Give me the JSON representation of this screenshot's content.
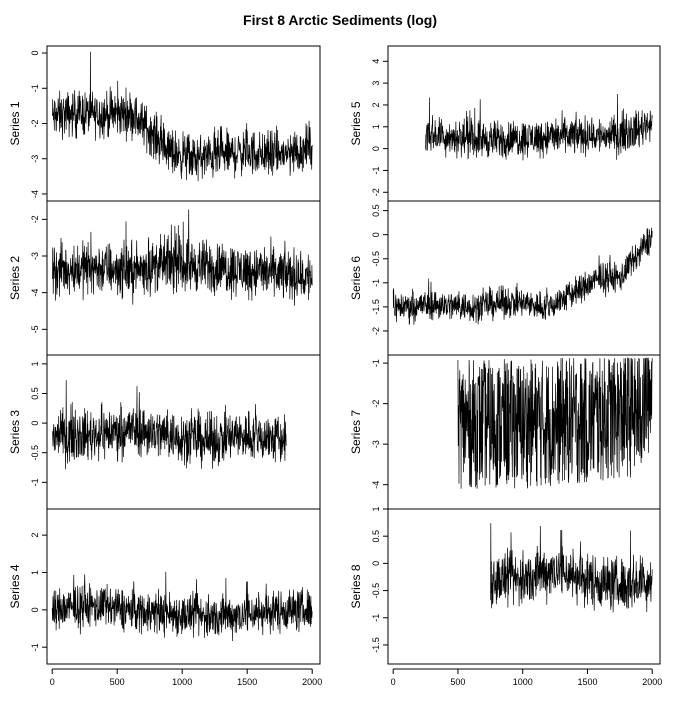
{
  "title": "First 8 Arctic Sediments (log)",
  "chart_data": [
    {
      "type": "line",
      "ylabel": "Series 1",
      "column": "left",
      "row": 0,
      "x": [
        0,
        200,
        400,
        600,
        750,
        900,
        1100,
        1300,
        1500,
        1700,
        1900,
        2000
      ],
      "yticks": [
        0,
        -1,
        -2,
        -3,
        -4
      ],
      "ylim": [
        -4.2,
        0.2
      ],
      "xrange": [
        0,
        2000
      ],
      "level": [
        -1.8,
        -1.7,
        -1.75,
        -1.7,
        -2.2,
        -2.8,
        -3.0,
        -2.9,
        -2.8,
        -2.9,
        -2.8,
        -2.6
      ],
      "noise": 0.45
    },
    {
      "type": "line",
      "ylabel": "Series 2",
      "column": "left",
      "row": 1,
      "x": [
        0,
        300,
        600,
        900,
        1200,
        1500,
        1800,
        2000
      ],
      "yticks": [
        -2,
        -3,
        -4,
        -5
      ],
      "ylim": [
        -5.7,
        -1.5
      ],
      "xrange": [
        0,
        2000
      ],
      "level": [
        -3.4,
        -3.3,
        -3.4,
        -3.2,
        -3.3,
        -3.4,
        -3.5,
        -3.6
      ],
      "noise": 0.5
    },
    {
      "type": "line",
      "ylabel": "Series 3",
      "column": "left",
      "row": 2,
      "x": [
        0,
        300,
        600,
        900,
        1200,
        1500,
        1800
      ],
      "yticks": [
        1.0,
        0.5,
        0.0,
        -0.5,
        -1.0
      ],
      "ylim": [
        -1.45,
        1.15
      ],
      "xrange": [
        0,
        1800
      ],
      "level": [
        -0.2,
        -0.2,
        -0.1,
        -0.2,
        -0.3,
        -0.2,
        -0.3
      ],
      "noise": 0.3
    },
    {
      "type": "line",
      "ylabel": "Series 4",
      "column": "left",
      "row": 3,
      "x": [
        0,
        300,
        600,
        900,
        1200,
        1500,
        1800,
        2000
      ],
      "yticks": [
        2,
        1,
        0,
        -1
      ],
      "ylim": [
        -1.45,
        2.7
      ],
      "xrange": [
        0,
        2000
      ],
      "level": [
        0.0,
        0.1,
        0.0,
        -0.1,
        -0.2,
        -0.1,
        0.0,
        0.0
      ],
      "noise": 0.4
    },
    {
      "type": "line",
      "ylabel": "Series 5",
      "column": "right",
      "row": 0,
      "x": [
        250,
        500,
        800,
        1100,
        1400,
        1700,
        1900,
        2000
      ],
      "yticks": [
        4,
        3,
        2,
        1,
        0,
        -1,
        -2
      ],
      "ylim": [
        -2.4,
        4.7
      ],
      "xrange": [
        250,
        2000
      ],
      "level": [
        0.7,
        0.5,
        0.4,
        0.5,
        0.6,
        0.6,
        0.9,
        1.3
      ],
      "noise": 0.6
    },
    {
      "type": "line",
      "ylabel": "Series 6",
      "column": "right",
      "row": 1,
      "x": [
        0,
        300,
        600,
        900,
        1200,
        1400,
        1600,
        1750,
        1900,
        2000
      ],
      "yticks": [
        0.5,
        0.0,
        -0.5,
        -1.0,
        -1.5,
        -2.0
      ],
      "ylim": [
        -2.5,
        0.7
      ],
      "xrange": [
        0,
        2000
      ],
      "level": [
        -1.5,
        -1.45,
        -1.5,
        -1.4,
        -1.5,
        -1.2,
        -0.9,
        -0.9,
        -0.4,
        0.0
      ],
      "noise": 0.22
    },
    {
      "type": "line",
      "ylabel": "Series 7",
      "column": "right",
      "row": 2,
      "x": [
        500,
        1000,
        1500,
        1900,
        2000
      ],
      "yticks": [
        -1,
        -2,
        -3,
        -4
      ],
      "ylim": [
        -4.6,
        -0.8
      ],
      "xrange": [
        500,
        2000
      ],
      "level": [
        -2.5,
        -2.5,
        -2.4,
        -2.2,
        -1.5
      ],
      "noise": 1.0
    },
    {
      "type": "line",
      "ylabel": "Series 8",
      "column": "right",
      "row": 3,
      "x": [
        750,
        1000,
        1250,
        1500,
        1750,
        2000
      ],
      "yticks": [
        1.0,
        0.5,
        0.0,
        -0.5,
        -1.0,
        -1.5
      ],
      "ylim": [
        -1.85,
        1.0
      ],
      "xrange": [
        750,
        2000
      ],
      "level": [
        -0.3,
        -0.3,
        -0.1,
        -0.3,
        -0.4,
        -0.3
      ],
      "noise": 0.35
    }
  ],
  "xaxis": {
    "ticks": [
      0,
      500,
      1000,
      1500,
      2000
    ],
    "tick_labels": [
      "0",
      "500",
      "1000",
      "1500",
      "2000"
    ]
  }
}
